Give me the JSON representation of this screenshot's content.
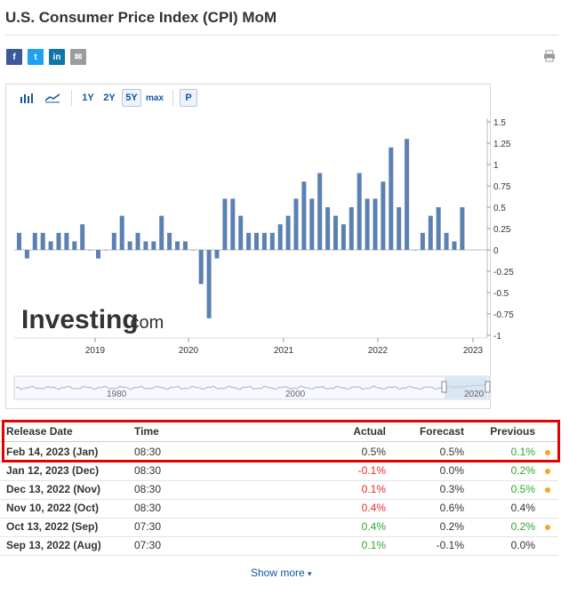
{
  "page": {
    "title": "U.S. Consumer Price Index (CPI) MoM"
  },
  "share": {
    "facebook": "f",
    "twitter": "t",
    "linkedin": "in",
    "email": "✉"
  },
  "toolbar": {
    "bar_icon": "bar-chart-icon",
    "line_icon": "line-chart-icon",
    "ranges": [
      "1Y",
      "2Y",
      "5Y",
      "max"
    ],
    "active_range": "5Y",
    "p_label": "P"
  },
  "chart_data": {
    "type": "bar",
    "title": "",
    "xlabel": "",
    "ylabel": "",
    "ylim": [
      -1,
      1.5
    ],
    "y_ticks": [
      "1.5",
      "1.25",
      "1",
      "0.75",
      "0.5",
      "0.25",
      "0",
      "-0.25",
      "-0.5",
      "-0.75",
      "-1"
    ],
    "x_ticks": [
      "2019",
      "2020",
      "2021",
      "2022",
      "2023"
    ],
    "series": [
      {
        "name": "CPI MoM",
        "values": [
          0.2,
          -0.1,
          0.2,
          0.2,
          0.1,
          0.2,
          0.2,
          0.1,
          0.3,
          0.0,
          -0.1,
          0.0,
          0.2,
          0.4,
          0.1,
          0.2,
          0.1,
          0.1,
          0.4,
          0.2,
          0.1,
          0.1,
          0.0,
          -0.4,
          -0.8,
          -0.1,
          0.6,
          0.6,
          0.4,
          0.2,
          0.2,
          0.2,
          0.2,
          0.3,
          0.4,
          0.6,
          0.8,
          0.6,
          0.9,
          0.5,
          0.4,
          0.3,
          0.5,
          0.9,
          0.6,
          0.6,
          0.8,
          1.2,
          0.5,
          1.3,
          0.0,
          0.2,
          0.4,
          0.5,
          0.2,
          0.1,
          0.5
        ]
      }
    ],
    "watermark": {
      "brand": "Investing",
      "suffix": ".com"
    },
    "navigator": {
      "labels": [
        "1980",
        "2000",
        "2020"
      ]
    }
  },
  "table": {
    "headers": {
      "release_date": "Release Date",
      "time": "Time",
      "actual": "Actual",
      "forecast": "Forecast",
      "previous": "Previous"
    },
    "rows": [
      {
        "date": "Feb 14, 2023 (Jan)",
        "time": "08:30",
        "actual": "0.5%",
        "actual_status": "neu",
        "forecast": "0.5%",
        "previous": "0.1%",
        "previous_status": "pos",
        "revised": true
      },
      {
        "date": "Jan 12, 2023 (Dec)",
        "time": "08:30",
        "actual": "-0.1%",
        "actual_status": "neg",
        "forecast": "0.0%",
        "previous": "0.2%",
        "previous_status": "pos",
        "revised": true
      },
      {
        "date": "Dec 13, 2022 (Nov)",
        "time": "08:30",
        "actual": "0.1%",
        "actual_status": "neg",
        "forecast": "0.3%",
        "previous": "0.5%",
        "previous_status": "pos",
        "revised": true
      },
      {
        "date": "Nov 10, 2022 (Oct)",
        "time": "08:30",
        "actual": "0.4%",
        "actual_status": "neg",
        "forecast": "0.6%",
        "previous": "0.4%",
        "previous_status": "neu",
        "revised": false
      },
      {
        "date": "Oct 13, 2022 (Sep)",
        "time": "07:30",
        "actual": "0.4%",
        "actual_status": "pos",
        "forecast": "0.2%",
        "previous": "0.2%",
        "previous_status": "pos",
        "revised": true
      },
      {
        "date": "Sep 13, 2022 (Aug)",
        "time": "07:30",
        "actual": "0.1%",
        "actual_status": "pos",
        "forecast": "-0.1%",
        "previous": "0.0%",
        "previous_status": "neu",
        "revised": false
      }
    ],
    "show_more": "Show more"
  },
  "colors": {
    "bar": "#5b80b2",
    "positive": "#2daa2d",
    "negative": "#e62b2b",
    "highlight": "#e60000",
    "link": "#1256a0"
  }
}
